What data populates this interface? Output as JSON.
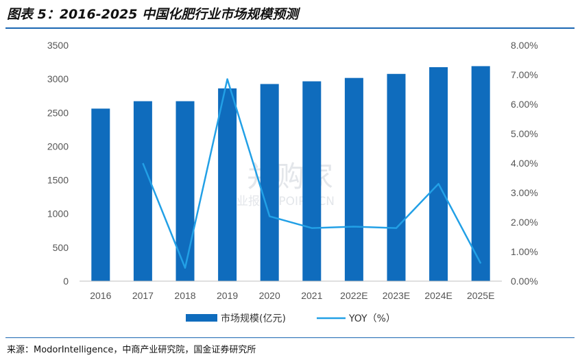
{
  "figure": {
    "title": "图表 5：2016-2025 中国化肥行业市场规模预测",
    "source": "来源：ModorIntelligence，中商产业研究院，国金证券研究所",
    "watermark": {
      "main": "并购家",
      "sub": "行业报告 IPOIPO.CN"
    }
  },
  "chart_data": {
    "type": "bar",
    "categories": [
      "2016",
      "2017",
      "2018",
      "2019",
      "2020",
      "2021",
      "2022E",
      "2023E",
      "2024E",
      "2025E"
    ],
    "series": [
      {
        "name": "市场规模(亿元)",
        "type": "bar",
        "axis": "left",
        "color": "#0f6cbd",
        "values": [
          2560,
          2670,
          2670,
          2860,
          2925,
          2965,
          3015,
          3075,
          3175,
          3190
        ]
      },
      {
        "name": "YOY（%）",
        "type": "line",
        "axis": "right",
        "color": "#22a0e6",
        "values": [
          null,
          4.0,
          0.45,
          6.85,
          2.2,
          1.8,
          1.85,
          1.8,
          3.3,
          0.6
        ]
      }
    ],
    "y_left": {
      "min": 0,
      "max": 3500,
      "ticks": [
        "0",
        "500",
        "1000",
        "1500",
        "2000",
        "2500",
        "3000",
        "3500"
      ]
    },
    "y_right": {
      "min": 0,
      "max": 8,
      "ticks": [
        "0.00%",
        "1.00%",
        "2.00%",
        "3.00%",
        "4.00%",
        "5.00%",
        "6.00%",
        "7.00%",
        "8.00%"
      ]
    },
    "grid": false,
    "legend": "bottom"
  }
}
